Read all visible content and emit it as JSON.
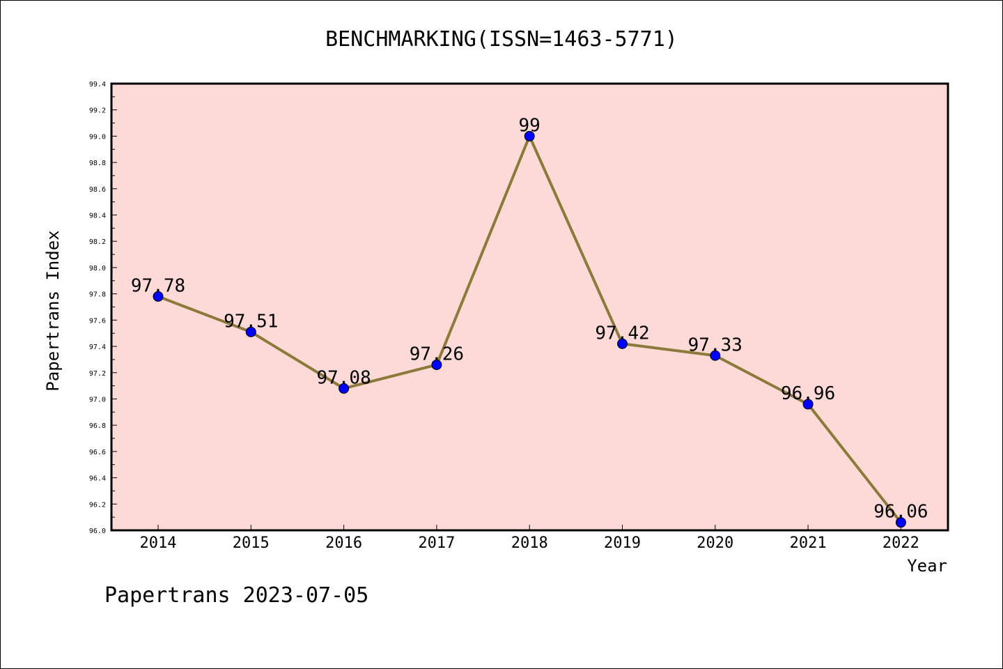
{
  "chart_data": {
    "type": "line",
    "title": "BENCHMARKING(ISSN=1463-5771)",
    "xlabel": "Year",
    "ylabel": "Papertrans Index",
    "categories": [
      "2014",
      "2015",
      "2016",
      "2017",
      "2018",
      "2019",
      "2020",
      "2021",
      "2022"
    ],
    "values": [
      97.78,
      97.51,
      97.08,
      97.26,
      99,
      97.42,
      97.33,
      96.96,
      96.06
    ],
    "data_labels": [
      "97.78",
      "97.51",
      "97.08",
      "97.26",
      "99",
      "97.42",
      "97.33",
      "96.96",
      "96.06"
    ],
    "ylim": [
      96.0,
      99.4
    ],
    "yticks": [
      "96.0",
      "96.2",
      "96.4",
      "96.6",
      "96.8",
      "97.0",
      "97.2",
      "97.4",
      "97.6",
      "97.8",
      "98.0",
      "98.2",
      "98.4",
      "98.6",
      "98.8",
      "99.0",
      "99.2",
      "99.4"
    ],
    "grid": false,
    "colors": {
      "plot_background": "#fddad8",
      "line": "#8c7a3a",
      "marker": "#0000ff"
    }
  },
  "footer": "Papertrans 2023-07-05"
}
